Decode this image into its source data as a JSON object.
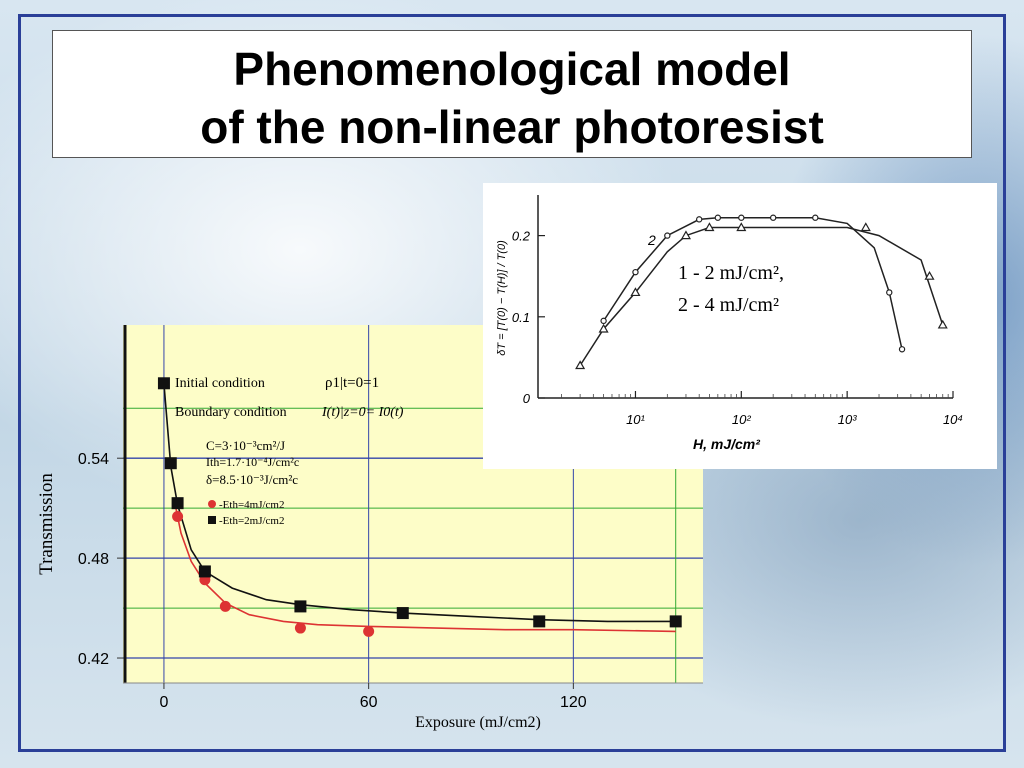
{
  "slide": {
    "title_line1": "Phenomenological model",
    "title_line2": "of the non-linear photoresist"
  },
  "colors": {
    "frame": "#2a3f98",
    "plot_bg": "#fdfdc8",
    "series_red": "#dd3333",
    "series_black": "#111111",
    "grid_blue": "#3344aa",
    "grid_green": "#33aa33"
  },
  "chart_data": [
    {
      "type": "scatter",
      "title": "",
      "xlabel": "Exposure (mJ/cm2)",
      "ylabel": "Transmission",
      "x_ticks": [
        "0",
        "60",
        "120"
      ],
      "y_ticks": [
        "0.42",
        "0.48",
        "0.54"
      ],
      "xlim": [
        -12,
        158
      ],
      "ylim": [
        0.405,
        0.62
      ],
      "grid": true,
      "annotations": {
        "initial_condition": "Initial condition",
        "initial_eq": "ρ1|t=0=1",
        "boundary_condition": "Boundary condition",
        "boundary_eq": "I(t)|z=0= I0(t)",
        "param_c": "C=3·10⁻³cm²/J",
        "param_ith": "Ith=1.7·10⁻⁴J/cm²c",
        "param_delta": "δ=8.5·10⁻³J/cm²c"
      },
      "series": [
        {
          "name": "-Eth=4mJ/cm2",
          "marker": "circle",
          "color": "#dd3333",
          "x": [
            4,
            12,
            18,
            40,
            60
          ],
          "y": [
            0.505,
            0.467,
            0.451,
            0.438,
            0.436
          ],
          "fit_x": [
            3,
            5,
            8,
            12,
            18,
            25,
            35,
            45,
            60,
            80,
            100,
            120,
            150
          ],
          "fit_y": [
            0.515,
            0.495,
            0.478,
            0.465,
            0.453,
            0.446,
            0.442,
            0.44,
            0.439,
            0.438,
            0.437,
            0.437,
            0.436
          ]
        },
        {
          "name": "-Eth=2mJ/cm2",
          "marker": "square",
          "color": "#111111",
          "x": [
            0,
            2,
            4,
            12,
            40,
            70,
            110,
            150
          ],
          "y": [
            0.585,
            0.537,
            0.513,
            0.472,
            0.451,
            0.447,
            0.442,
            0.442
          ],
          "fit_x": [
            0,
            2,
            4,
            8,
            12,
            20,
            30,
            40,
            55,
            70,
            90,
            110,
            130,
            150
          ],
          "fit_y": [
            0.585,
            0.535,
            0.512,
            0.485,
            0.472,
            0.462,
            0.455,
            0.452,
            0.449,
            0.447,
            0.445,
            0.443,
            0.442,
            0.442
          ]
        }
      ]
    },
    {
      "type": "line",
      "title": "",
      "xlabel": "H, mJ/cm²",
      "ylabel": "δT = [T(0) − T(H)] / T(0)",
      "x_scale": "log",
      "x_ticks": [
        "10¹",
        "10²",
        "10³",
        "10⁴"
      ],
      "y_ticks": [
        "0",
        "0.1",
        "0.2"
      ],
      "xlim": [
        1.2,
        10000
      ],
      "ylim": [
        0,
        0.25
      ],
      "legend": {
        "line1": "1 - 2 mJ/cm²,",
        "line2": "2 - 4 mJ/cm²"
      },
      "curve_label": "2",
      "series": [
        {
          "name": "1",
          "marker": "triangle",
          "x": [
            3,
            5,
            10,
            20,
            30,
            50,
            100,
            200,
            500,
            1000,
            2000,
            5000,
            8000
          ],
          "y": [
            0.04,
            0.085,
            0.13,
            0.18,
            0.2,
            0.21,
            0.21,
            0.21,
            0.21,
            0.21,
            0.2,
            0.17,
            0.09
          ],
          "marker_x": [
            3,
            5,
            10,
            30,
            50,
            100,
            1500,
            6000,
            8000
          ],
          "marker_y": [
            0.04,
            0.085,
            0.13,
            0.2,
            0.21,
            0.21,
            0.21,
            0.15,
            0.09
          ]
        },
        {
          "name": "2",
          "marker": "circle",
          "x": [
            5,
            10,
            20,
            40,
            60,
            100,
            200,
            500,
            1000,
            1800,
            2500,
            3300
          ],
          "y": [
            0.095,
            0.155,
            0.2,
            0.22,
            0.222,
            0.222,
            0.222,
            0.222,
            0.215,
            0.185,
            0.13,
            0.06
          ],
          "marker_x": [
            5,
            10,
            20,
            40,
            60,
            100,
            200,
            500,
            2500,
            3300
          ],
          "marker_y": [
            0.095,
            0.155,
            0.2,
            0.22,
            0.222,
            0.222,
            0.222,
            0.222,
            0.13,
            0.06
          ]
        }
      ]
    }
  ]
}
